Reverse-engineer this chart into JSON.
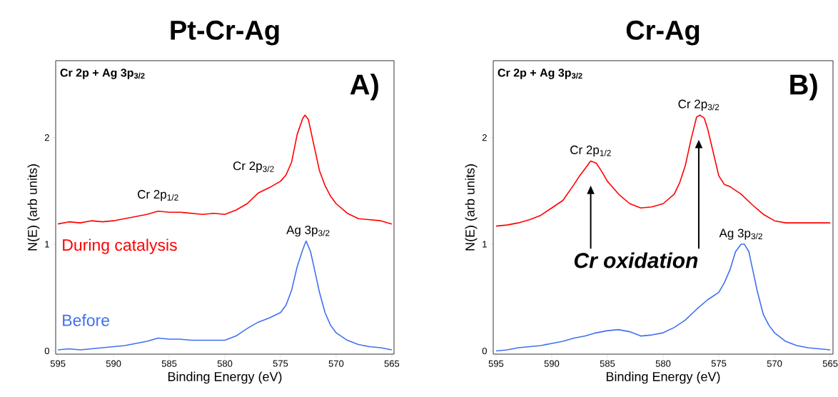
{
  "chart_data": [
    {
      "type": "line",
      "title": "Pt-Cr-Ag",
      "xlabel": "Binding Energy (eV)",
      "ylabel": "N(E) (arb units)",
      "xlim": [
        595.2,
        564.8
      ],
      "ylim": [
        -0.03,
        2.72
      ],
      "xticks": [
        595,
        590,
        585,
        580,
        575,
        570,
        565
      ],
      "yticks": [
        0,
        1,
        2
      ],
      "annotations": [
        "Cr 2p + Ag 3p$_{3/2}$",
        "A)",
        {
          "text": "Cr 2p$_{1/2}$",
          "x": 586,
          "y": 1.31
        },
        {
          "text": "Cr 2p$_{3/2}$",
          "x": 576,
          "y": 1.53
        },
        {
          "text": "Ag 3p$_{3/2}$",
          "x": 572.7,
          "y": 1.03
        }
      ],
      "series": [
        {
          "name": "During catalysis",
          "color": "#ff0000",
          "x": [
            595,
            594,
            593,
            592,
            591,
            590,
            589,
            588,
            587,
            586,
            585,
            584,
            583,
            582,
            581,
            580,
            579,
            578,
            577,
            576,
            575,
            574.5,
            574,
            573.5,
            573,
            572.8,
            572.5,
            572,
            571.5,
            571,
            570.5,
            570,
            569,
            568,
            567,
            566,
            565
          ],
          "values": [
            1.19,
            1.21,
            1.2,
            1.22,
            1.21,
            1.22,
            1.24,
            1.26,
            1.28,
            1.31,
            1.3,
            1.3,
            1.29,
            1.28,
            1.29,
            1.28,
            1.32,
            1.38,
            1.48,
            1.53,
            1.59,
            1.65,
            1.77,
            2.03,
            2.18,
            2.21,
            2.17,
            1.93,
            1.69,
            1.55,
            1.45,
            1.38,
            1.29,
            1.24,
            1.23,
            1.22,
            1.19
          ]
        },
        {
          "name": "Before",
          "color": "#4070f0",
          "x": [
            595,
            594,
            593,
            592,
            591,
            590,
            589,
            588,
            587,
            586,
            585,
            584,
            583,
            582,
            581,
            580,
            579,
            578,
            577,
            576,
            575,
            574.5,
            574,
            573.5,
            573,
            572.7,
            572.3,
            572,
            571.5,
            571,
            570.5,
            570,
            569,
            568,
            567,
            566,
            565
          ],
          "values": [
            0.01,
            0.02,
            0.01,
            0.02,
            0.03,
            0.04,
            0.05,
            0.07,
            0.09,
            0.12,
            0.11,
            0.11,
            0.1,
            0.1,
            0.1,
            0.1,
            0.14,
            0.21,
            0.27,
            0.31,
            0.36,
            0.43,
            0.57,
            0.79,
            0.95,
            1.03,
            0.93,
            0.79,
            0.55,
            0.36,
            0.24,
            0.17,
            0.1,
            0.06,
            0.04,
            0.03,
            0.01
          ]
        }
      ]
    },
    {
      "type": "line",
      "title": "Cr-Ag",
      "xlabel": "Binding Energy (eV)",
      "ylabel": "N(E) (arb units)",
      "xlim": [
        595.25,
        564.75
      ],
      "ylim": [
        -0.03,
        2.72
      ],
      "xticks": [
        595,
        590,
        585,
        580,
        575,
        570,
        565
      ],
      "yticks": [
        0,
        1,
        2
      ],
      "annotations": [
        "Cr 2p + Ag 3p$_{3/2}$",
        "B)",
        {
          "text": "Cr 2p$_{1/2}$",
          "x": 586.5,
          "y": 1.78
        },
        {
          "text": "Cr 2p$_{3/2}$",
          "x": 576.8,
          "y": 2.21
        },
        {
          "text": "Ag 3p$_{3/2}$",
          "x": 573,
          "y": 1.0
        },
        "Cr oxidation"
      ],
      "series": [
        {
          "color": "#ff0000",
          "x": [
            595,
            594,
            593,
            592,
            591,
            590,
            589,
            588,
            587.5,
            587,
            586.5,
            586,
            585.5,
            585,
            584,
            583,
            582,
            581,
            580,
            579,
            578.5,
            578,
            577.5,
            577,
            576.7,
            576.3,
            576,
            575.5,
            575,
            574.5,
            574,
            573,
            572,
            571,
            570,
            569,
            568,
            566,
            565
          ],
          "values": [
            1.17,
            1.18,
            1.2,
            1.23,
            1.27,
            1.34,
            1.41,
            1.56,
            1.64,
            1.71,
            1.78,
            1.76,
            1.68,
            1.59,
            1.47,
            1.38,
            1.34,
            1.35,
            1.38,
            1.47,
            1.58,
            1.74,
            1.98,
            2.19,
            2.21,
            2.18,
            2.08,
            1.86,
            1.64,
            1.56,
            1.54,
            1.47,
            1.37,
            1.28,
            1.22,
            1.2,
            1.2,
            1.2,
            1.2
          ]
        },
        {
          "color": "#4070f0",
          "x": [
            595,
            594,
            593,
            592,
            591,
            590,
            589,
            588,
            587,
            586,
            585,
            584,
            583,
            582,
            581,
            580,
            579,
            578,
            577,
            576,
            575,
            574.5,
            574,
            573.5,
            573,
            572.7,
            572.3,
            572,
            571.5,
            571,
            570.5,
            570,
            569,
            568,
            567,
            566,
            565
          ],
          "values": [
            0,
            0.01,
            0.03,
            0.04,
            0.05,
            0.07,
            0.09,
            0.12,
            0.14,
            0.17,
            0.19,
            0.2,
            0.18,
            0.14,
            0.15,
            0.17,
            0.22,
            0.29,
            0.39,
            0.48,
            0.55,
            0.64,
            0.76,
            0.93,
            1.0,
            1.0,
            0.93,
            0.78,
            0.54,
            0.34,
            0.24,
            0.17,
            0.09,
            0.05,
            0.03,
            0.02,
            0.01
          ]
        }
      ]
    }
  ]
}
